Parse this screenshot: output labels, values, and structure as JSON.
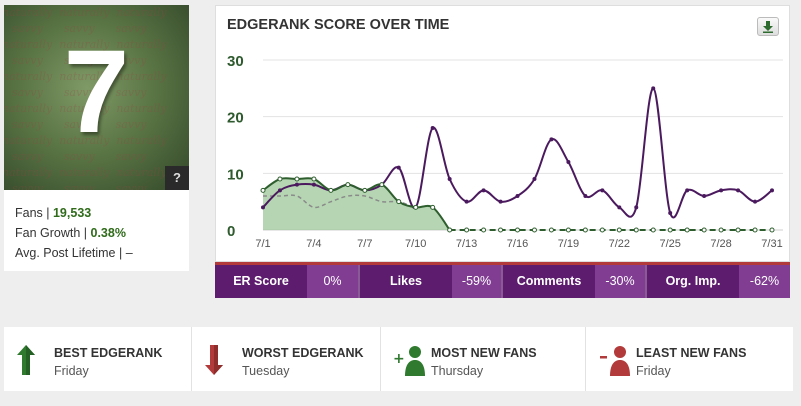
{
  "score_card": {
    "score": "7",
    "watermark": "naturally savvy",
    "help_label": "?",
    "fans_label": "Fans | ",
    "fans_value": "19,533",
    "growth_label": "Fan Growth | ",
    "growth_value": "0.38%",
    "lifetime_label": "Avg. Post Lifetime | ",
    "lifetime_value": "–"
  },
  "chart_card": {
    "title": "EDGERANK SCORE OVER TIME",
    "download_icon": "download-icon"
  },
  "chart_data": {
    "type": "line",
    "title": "EDGERANK SCORE OVER TIME",
    "x_ticks": [
      "7/1",
      "7/4",
      "7/7",
      "7/10",
      "7/13",
      "7/16",
      "7/19",
      "7/22",
      "7/25",
      "7/28",
      "7/31"
    ],
    "y_ticks": [
      0,
      10,
      20,
      30
    ],
    "ylim": [
      0,
      30
    ],
    "xlim": [
      1,
      31
    ],
    "grid": true,
    "colors": {
      "main": "#4b1a5e",
      "area": "#9ec89a",
      "area_line": "#2e5e2e",
      "dashed": "#8a8a8a"
    },
    "series": [
      {
        "values": [
          [
            1,
            4
          ],
          [
            2,
            7
          ],
          [
            3,
            8
          ],
          [
            4,
            8
          ],
          [
            5,
            7
          ],
          [
            6,
            8
          ],
          [
            7,
            7
          ],
          [
            8,
            8
          ],
          [
            9,
            11
          ],
          [
            10,
            4
          ],
          [
            11,
            18
          ],
          [
            12,
            9
          ],
          [
            13,
            5
          ],
          [
            14,
            7
          ],
          [
            15,
            5
          ],
          [
            16,
            6
          ],
          [
            17,
            9
          ],
          [
            18,
            16
          ],
          [
            19,
            12
          ],
          [
            20,
            6
          ],
          [
            21,
            7
          ],
          [
            22,
            4
          ],
          [
            23,
            4
          ],
          [
            24,
            25
          ],
          [
            25,
            3
          ],
          [
            26,
            7
          ],
          [
            27,
            6
          ],
          [
            28,
            7
          ],
          [
            29,
            7
          ],
          [
            30,
            5
          ],
          [
            31,
            7
          ]
        ]
      },
      {
        "values": [
          [
            1,
            7
          ],
          [
            2,
            9
          ],
          [
            3,
            9
          ],
          [
            4,
            9
          ],
          [
            5,
            7
          ],
          [
            6,
            8
          ],
          [
            7,
            7
          ],
          [
            8,
            8
          ],
          [
            9,
            5
          ],
          [
            10,
            4
          ],
          [
            11,
            4
          ],
          [
            12,
            0
          ],
          [
            13,
            0
          ],
          [
            14,
            0
          ],
          [
            15,
            0
          ],
          [
            16,
            0
          ],
          [
            17,
            0
          ],
          [
            18,
            0
          ],
          [
            19,
            0
          ],
          [
            20,
            0
          ],
          [
            21,
            0
          ],
          [
            22,
            0
          ],
          [
            23,
            0
          ],
          [
            24,
            0
          ],
          [
            25,
            0
          ],
          [
            26,
            0
          ],
          [
            27,
            0
          ],
          [
            28,
            0
          ],
          [
            29,
            0
          ],
          [
            30,
            0
          ],
          [
            31,
            0
          ]
        ]
      },
      {
        "values": [
          [
            1,
            6
          ],
          [
            2,
            6
          ],
          [
            3,
            6
          ],
          [
            4,
            4
          ],
          [
            5,
            5
          ],
          [
            6,
            6
          ],
          [
            7,
            6
          ],
          [
            8,
            5
          ],
          [
            9,
            5
          ],
          [
            10,
            4
          ],
          [
            11,
            4
          ],
          [
            12,
            0
          ]
        ]
      }
    ]
  },
  "metrics": [
    {
      "label": "ER Score",
      "value": "0%"
    },
    {
      "label": "Likes",
      "value": "-59%"
    },
    {
      "label": "Comments",
      "value": "-30%"
    },
    {
      "label": "Org. Imp.",
      "value": "-62%"
    }
  ],
  "highlights": [
    {
      "label": "BEST EDGERANK",
      "day": "Friday",
      "icon": "arrow-up-icon"
    },
    {
      "label": "WORST EDGERANK",
      "day": "Tuesday",
      "icon": "arrow-down-icon"
    },
    {
      "label": "MOST NEW FANS",
      "day": "Thursday",
      "icon": "user-plus-icon"
    },
    {
      "label": "LEAST NEW FANS",
      "day": "Friday",
      "icon": "user-minus-icon"
    }
  ]
}
